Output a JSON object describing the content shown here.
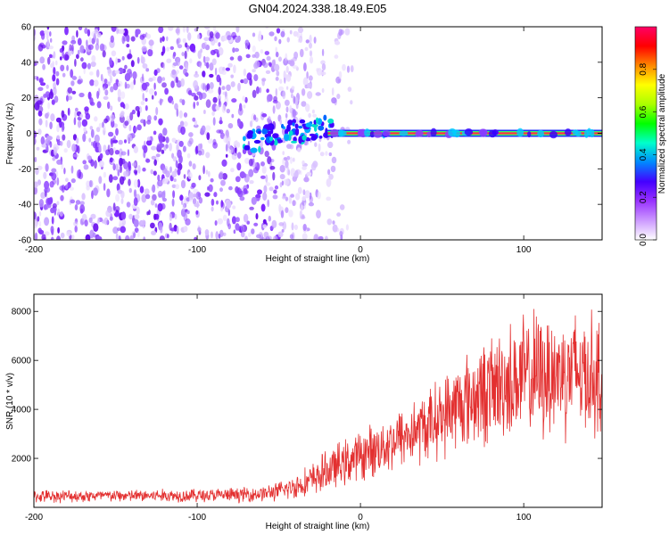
{
  "title": "GN04.2024.338.18.49.E05",
  "colors": {
    "snr_line": "#e33030",
    "axis": "#000000"
  },
  "chart_data": [
    {
      "type": "heatmap",
      "title": "GN04.2024.338.18.49.E05",
      "xlabel": "Height of straight line (km)",
      "ylabel": "Frequency (Hz)",
      "xlim": [
        -200,
        148
      ],
      "ylim": [
        -60,
        60
      ],
      "xticks": [
        "-200",
        "-100",
        "0",
        "100"
      ],
      "yticks": [
        "60",
        "40",
        "20",
        "0",
        "-20",
        "-40",
        "-60"
      ],
      "colorbar": {
        "label": "Normalized spectral amplitude",
        "range": [
          0,
          1
        ],
        "ticks": [
          "0.0",
          "0.2",
          "0.4",
          "0.6",
          "0.8"
        ],
        "colormap": [
          "#ffffff",
          "#cc99ff",
          "#9933ff",
          "#4400ff",
          "#0088ff",
          "#00ffcc",
          "#00ff00",
          "#aaff00",
          "#ffff00",
          "#ff8800",
          "#ff0000",
          "#ff0066"
        ]
      },
      "features": {
        "noise_region_x": [
          -200,
          -30
        ],
        "signal_line_freq_hz": 0,
        "signal_line_x": [
          -20,
          148
        ]
      }
    },
    {
      "type": "line",
      "xlabel": "Height of straight line (km)",
      "ylabel": "SNR (10 * v/v)",
      "xlim": [
        -200,
        148
      ],
      "ylim": [
        0,
        8700
      ],
      "xticks": [
        "-200",
        "-100",
        "0",
        "100"
      ],
      "yticks": [
        "2000",
        "4000",
        "6000",
        "8000"
      ],
      "series": [
        {
          "x": [
            -200,
            -180,
            -160,
            -140,
            -120,
            -100,
            -80,
            -60,
            -50,
            -40,
            -30,
            -20,
            -10,
            0,
            10,
            20,
            30,
            40,
            50,
            60,
            70,
            80,
            90,
            100,
            110,
            120,
            130,
            140,
            148
          ],
          "y": [
            450,
            460,
            470,
            470,
            480,
            490,
            500,
            560,
            650,
            850,
            1100,
            1500,
            1800,
            2100,
            2400,
            2700,
            3000,
            3300,
            3700,
            4200,
            4500,
            4800,
            5100,
            5300,
            5400,
            5500,
            5600,
            5500,
            5300
          ],
          "spread": [
            300,
            300,
            300,
            300,
            320,
            330,
            340,
            380,
            450,
            600,
            800,
            1000,
            1100,
            1200,
            1300,
            1400,
            1600,
            1700,
            1900,
            2200,
            2400,
            2600,
            2800,
            3000,
            3100,
            3100,
            3100,
            3000,
            2800
          ]
        }
      ]
    }
  ]
}
